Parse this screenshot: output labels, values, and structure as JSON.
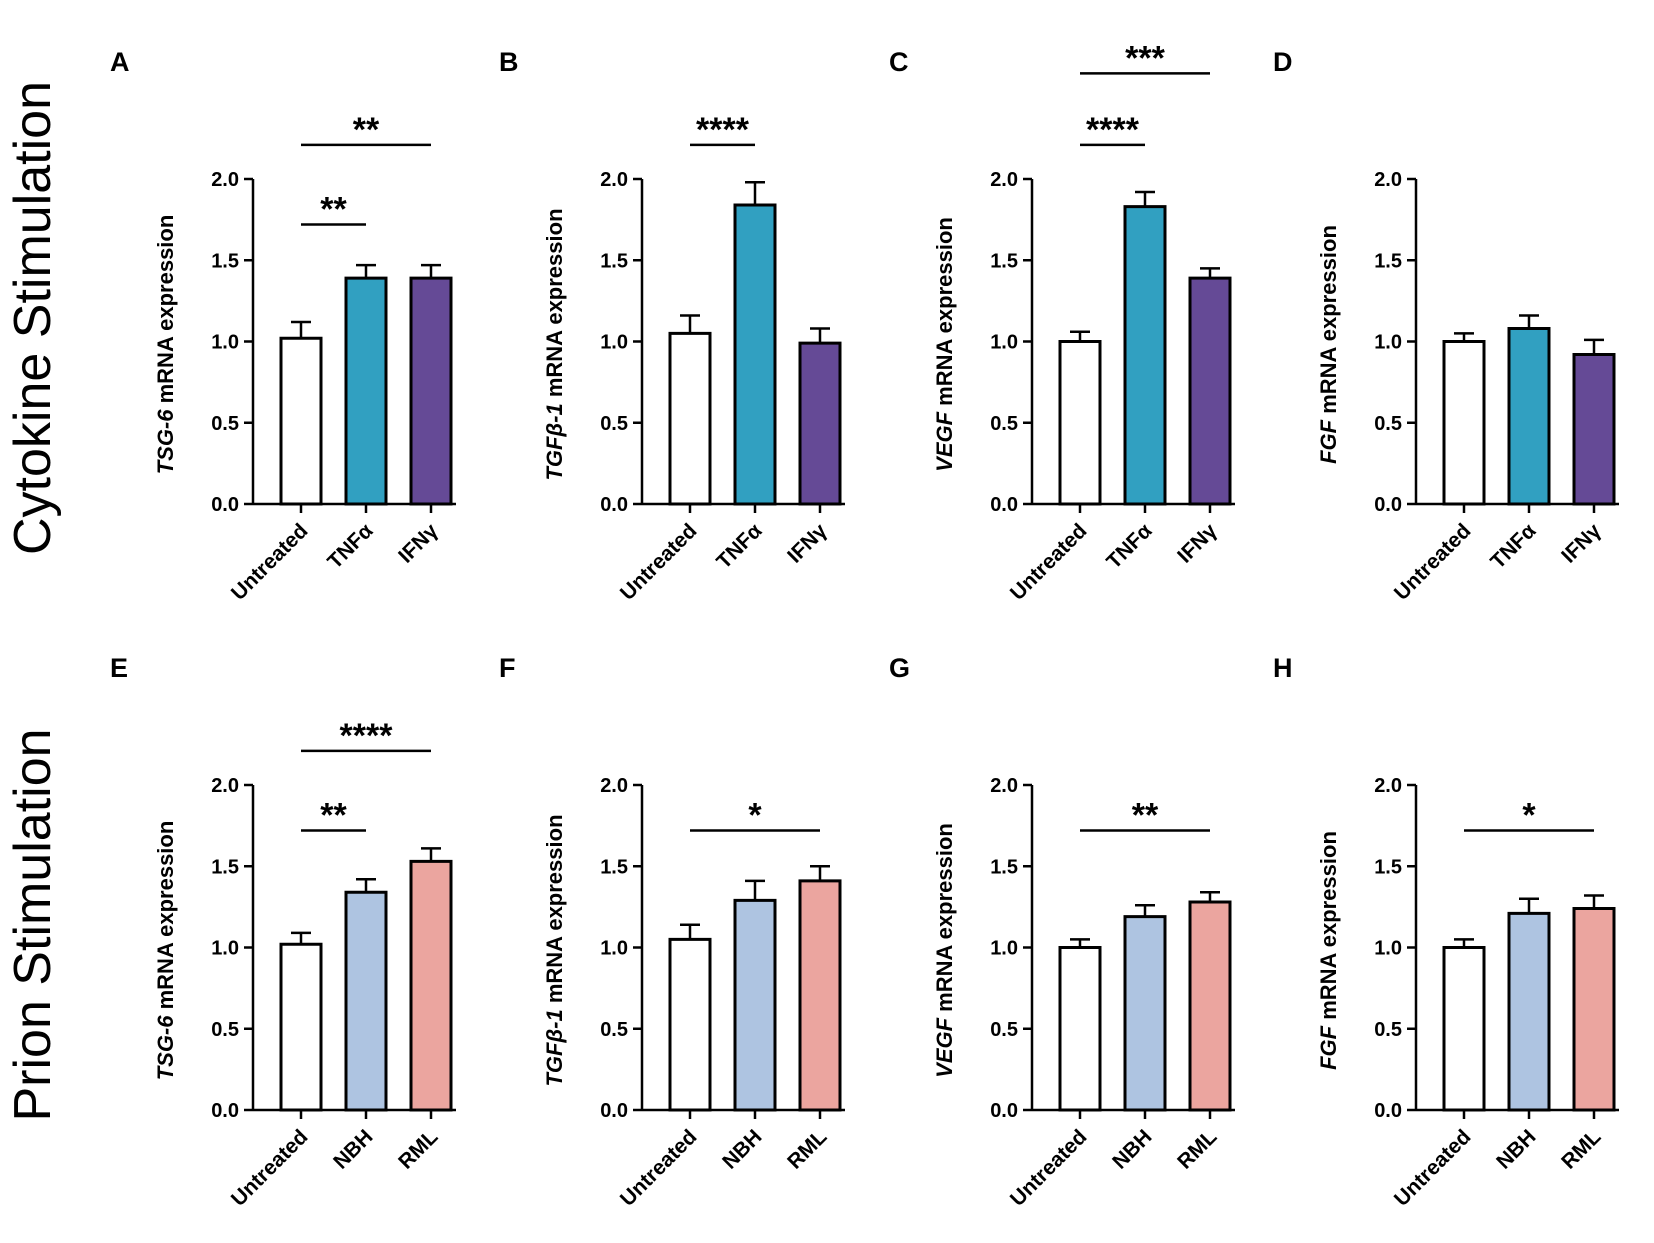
{
  "row_labels": [
    "Cytokine Stimulation",
    "Prion Stimulation"
  ],
  "colors": {
    "untreated": "#ffffff",
    "tnf": "#31a0c1",
    "ifn": "#654a96",
    "nbh": "#aec4e1",
    "rml": "#eba59f",
    "axis": "#000000"
  },
  "chart_data": [
    {
      "id": "A",
      "type": "bar",
      "row": 0,
      "col": 0,
      "gene": "TSG-6",
      "ylabel_suffix": " mRNA expression",
      "categories": [
        "Untreated",
        "TNFα",
        "IFNγ"
      ],
      "values": [
        1.02,
        1.39,
        1.39
      ],
      "errors": [
        0.1,
        0.08,
        0.08
      ],
      "color_keys": [
        "untreated",
        "tnf",
        "ifn"
      ],
      "ylim": [
        0,
        2.0
      ],
      "yticks": [
        "0.0",
        "0.5",
        "1.0",
        "1.5",
        "2.0"
      ],
      "significance": [
        {
          "from": 0,
          "to": 1,
          "label": "**",
          "level": 0
        },
        {
          "from": 0,
          "to": 2,
          "label": "**",
          "level": 1
        }
      ]
    },
    {
      "id": "B",
      "type": "bar",
      "row": 0,
      "col": 1,
      "gene": "TGFβ-1",
      "ylabel_suffix": " mRNA expression",
      "categories": [
        "Untreated",
        "TNFα",
        "IFNγ"
      ],
      "values": [
        1.05,
        1.84,
        0.99
      ],
      "errors": [
        0.11,
        0.14,
        0.09
      ],
      "color_keys": [
        "untreated",
        "tnf",
        "ifn"
      ],
      "ylim": [
        0,
        2.0
      ],
      "yticks": [
        "0.0",
        "0.5",
        "1.0",
        "1.5",
        "2.0"
      ],
      "significance": [
        {
          "from": 0,
          "to": 1,
          "label": "****",
          "level": 1
        }
      ]
    },
    {
      "id": "C",
      "type": "bar",
      "row": 0,
      "col": 2,
      "gene": "VEGF",
      "ylabel_suffix": " mRNA expression",
      "categories": [
        "Untreated",
        "TNFα",
        "IFNγ"
      ],
      "values": [
        1.0,
        1.83,
        1.39
      ],
      "errors": [
        0.06,
        0.09,
        0.06
      ],
      "color_keys": [
        "untreated",
        "tnf",
        "ifn"
      ],
      "ylim": [
        0,
        2.0
      ],
      "yticks": [
        "0.0",
        "0.5",
        "1.0",
        "1.5",
        "2.0"
      ],
      "significance": [
        {
          "from": 0,
          "to": 1,
          "label": "****",
          "level": 1
        },
        {
          "from": 0,
          "to": 2,
          "label": "***",
          "level": 2
        }
      ]
    },
    {
      "id": "D",
      "type": "bar",
      "row": 0,
      "col": 3,
      "gene": "FGF",
      "ylabel_suffix": " mRNA expression",
      "categories": [
        "Untreated",
        "TNFα",
        "IFNγ"
      ],
      "values": [
        1.0,
        1.08,
        0.92
      ],
      "errors": [
        0.05,
        0.08,
        0.09
      ],
      "color_keys": [
        "untreated",
        "tnf",
        "ifn"
      ],
      "ylim": [
        0,
        2.0
      ],
      "yticks": [
        "0.0",
        "0.5",
        "1.0",
        "1.5",
        "2.0"
      ],
      "significance": []
    },
    {
      "id": "E",
      "type": "bar",
      "row": 1,
      "col": 0,
      "gene": "TSG-6",
      "ylabel_suffix": " mRNA expression",
      "categories": [
        "Untreated",
        "NBH",
        "RML"
      ],
      "values": [
        1.02,
        1.34,
        1.53
      ],
      "errors": [
        0.07,
        0.08,
        0.08
      ],
      "color_keys": [
        "untreated",
        "nbh",
        "rml"
      ],
      "ylim": [
        0,
        2.0
      ],
      "yticks": [
        "0.0",
        "0.5",
        "1.0",
        "1.5",
        "2.0"
      ],
      "significance": [
        {
          "from": 0,
          "to": 1,
          "label": "**",
          "level": 0
        },
        {
          "from": 0,
          "to": 2,
          "label": "****",
          "level": 1
        }
      ]
    },
    {
      "id": "F",
      "type": "bar",
      "row": 1,
      "col": 1,
      "gene": "TGFβ-1",
      "ylabel_suffix": " mRNA expression",
      "categories": [
        "Untreated",
        "NBH",
        "RML"
      ],
      "values": [
        1.05,
        1.29,
        1.41
      ],
      "errors": [
        0.09,
        0.12,
        0.09
      ],
      "color_keys": [
        "untreated",
        "nbh",
        "rml"
      ],
      "ylim": [
        0,
        2.0
      ],
      "yticks": [
        "0.0",
        "0.5",
        "1.0",
        "1.5",
        "2.0"
      ],
      "significance": [
        {
          "from": 0,
          "to": 2,
          "label": "*",
          "level": 0
        }
      ]
    },
    {
      "id": "G",
      "type": "bar",
      "row": 1,
      "col": 2,
      "gene": "VEGF",
      "ylabel_suffix": " mRNA expression",
      "categories": [
        "Untreated",
        "NBH",
        "RML"
      ],
      "values": [
        1.0,
        1.19,
        1.28
      ],
      "errors": [
        0.05,
        0.07,
        0.06
      ],
      "color_keys": [
        "untreated",
        "nbh",
        "rml"
      ],
      "ylim": [
        0,
        2.0
      ],
      "yticks": [
        "0.0",
        "0.5",
        "1.0",
        "1.5",
        "2.0"
      ],
      "significance": [
        {
          "from": 0,
          "to": 2,
          "label": "**",
          "level": 0
        }
      ]
    },
    {
      "id": "H",
      "type": "bar",
      "row": 1,
      "col": 3,
      "gene": "FGF",
      "ylabel_suffix": " mRNA expression",
      "categories": [
        "Untreated",
        "NBH",
        "RML"
      ],
      "values": [
        1.0,
        1.21,
        1.24
      ],
      "errors": [
        0.05,
        0.09,
        0.08
      ],
      "color_keys": [
        "untreated",
        "nbh",
        "rml"
      ],
      "ylim": [
        0,
        2.0
      ],
      "yticks": [
        "0.0",
        "0.5",
        "1.0",
        "1.5",
        "2.0"
      ],
      "significance": [
        {
          "from": 0,
          "to": 2,
          "label": "*",
          "level": 0
        }
      ]
    }
  ]
}
